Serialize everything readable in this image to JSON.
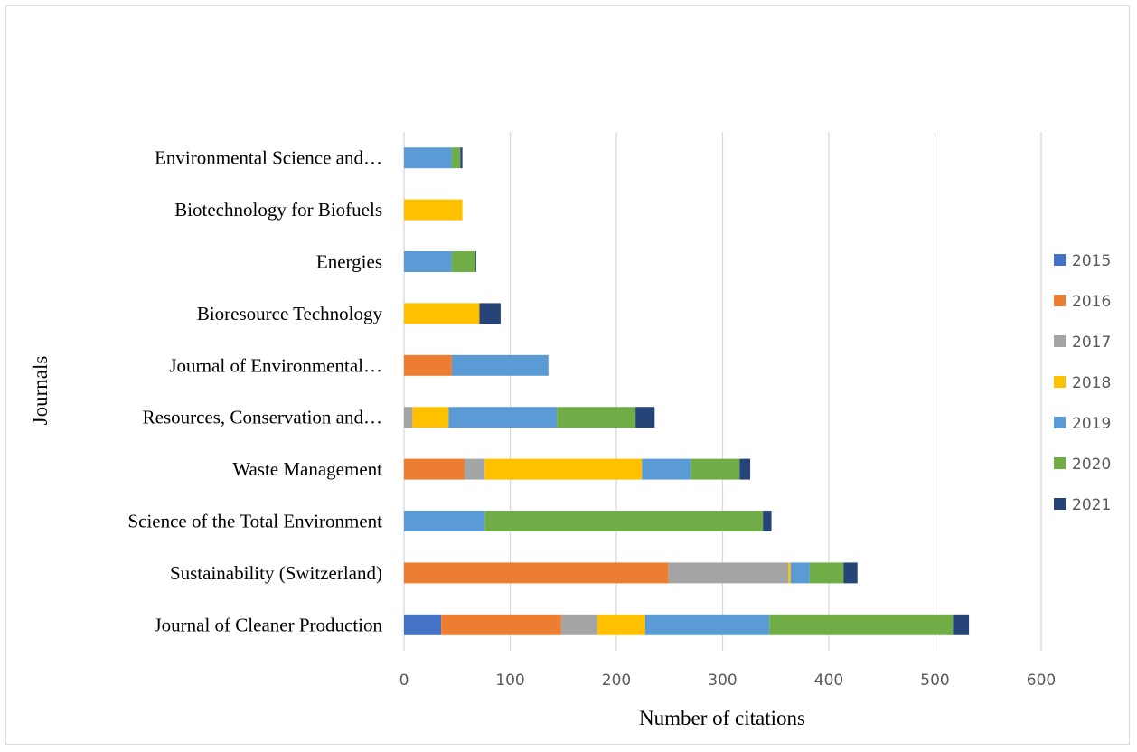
{
  "chart_data": {
    "type": "bar",
    "orientation": "horizontal",
    "stacked": true,
    "xlabel": "Number of citations",
    "ylabel": "Journals",
    "xlim": [
      0,
      600
    ],
    "xticks": [
      0,
      100,
      200,
      300,
      400,
      500,
      600
    ],
    "grid": "vertical",
    "legend_position": "right",
    "categories": [
      "Journal of Cleaner Production",
      "Sustainability (Switzerland)",
      "Science of the Total Environment",
      "Waste Management",
      "Resources, Conservation and…",
      "Journal of Environmental…",
      "Bioresource Technology",
      "Energies",
      "Biotechnology for Biofuels",
      "Environmental Science and…"
    ],
    "series": [
      {
        "name": "2015",
        "color": "#4472c4",
        "values": [
          35,
          0,
          0,
          0,
          0,
          0,
          0,
          0,
          0,
          0
        ]
      },
      {
        "name": "2016",
        "color": "#ed7d31",
        "values": [
          113,
          249,
          0,
          57,
          0,
          45,
          0,
          0,
          0,
          0
        ]
      },
      {
        "name": "2017",
        "color": "#a5a5a5",
        "values": [
          34,
          113,
          0,
          19,
          8,
          0,
          0,
          0,
          0,
          0
        ]
      },
      {
        "name": "2018",
        "color": "#ffc000",
        "values": [
          45,
          2,
          0,
          148,
          34,
          0,
          71,
          0,
          55,
          0
        ]
      },
      {
        "name": "2019",
        "color": "#5b9bd5",
        "values": [
          117,
          18,
          76,
          46,
          102,
          91,
          0,
          45,
          0,
          45
        ]
      },
      {
        "name": "2020",
        "color": "#70ad47",
        "values": [
          173,
          32,
          262,
          46,
          74,
          0,
          0,
          22,
          0,
          8
        ]
      },
      {
        "name": "2021",
        "color": "#264478",
        "values": [
          15,
          13,
          8,
          10,
          18,
          0,
          20,
          1,
          0,
          2
        ]
      }
    ]
  }
}
